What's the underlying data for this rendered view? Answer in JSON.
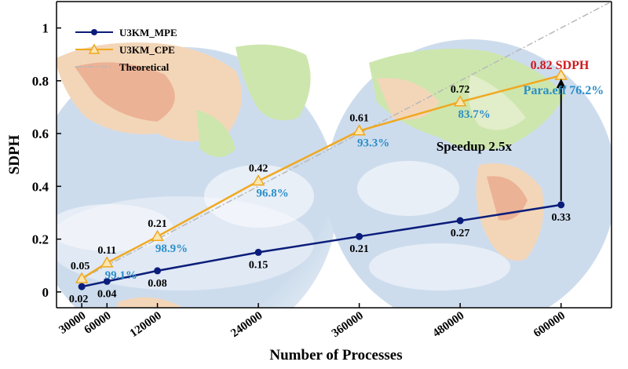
{
  "chart_data": {
    "type": "line",
    "xlabel": "Number of Processes",
    "ylabel": "SDPH",
    "x_ticks": [
      30000,
      60000,
      120000,
      240000,
      360000,
      480000,
      600000
    ],
    "y_ticks": [
      0,
      0.2,
      0.4,
      0.6,
      0.8,
      1
    ],
    "xlim": [
      0,
      660000
    ],
    "ylim": [
      -0.06,
      1.1
    ],
    "grid": false,
    "legend_position": "top-left",
    "series": [
      {
        "name": "U3KM_MPE",
        "color": "#0b1d7a",
        "marker": "circle",
        "x": [
          30000,
          60000,
          120000,
          240000,
          360000,
          480000,
          600000
        ],
        "y": [
          0.02,
          0.04,
          0.08,
          0.15,
          0.21,
          0.27,
          0.33
        ],
        "labels": [
          "0.02",
          "0.04",
          "0.08",
          "0.15",
          "0.21",
          "0.27",
          "0.33"
        ]
      },
      {
        "name": "U3KM_CPE",
        "color": "#f0a820",
        "marker": "triangle",
        "x": [
          30000,
          60000,
          120000,
          240000,
          360000,
          480000,
          600000
        ],
        "y": [
          0.05,
          0.11,
          0.21,
          0.42,
          0.61,
          0.72,
          0.82
        ],
        "labels": [
          "0.05",
          "0.11",
          "0.21",
          "0.42",
          "0.61",
          "0.72",
          ""
        ],
        "efficiency_labels": [
          "",
          "99.1%",
          "98.9%",
          "96.8%",
          "93.3%",
          "83.7%",
          ""
        ]
      },
      {
        "name": "Theoretical",
        "color": "#b8b8b8",
        "style": "dash-dot",
        "x": [
          30000,
          660000
        ],
        "y": [
          0.05,
          1.1
        ]
      }
    ],
    "annotations": {
      "peak": "0.82 SDPH",
      "efficiency": "Para.eff 76.2%",
      "speedup": "Speedup 2.5x"
    }
  },
  "colors": {
    "axis": "#000000",
    "peak_text": "#d0191e",
    "efficiency_text": "#2a8ec8",
    "ocean": "#b9cfe6",
    "land": "#b9dc8a",
    "desert": "#f0c59a",
    "storm": "#e3926a",
    "cloud": "#ffffff"
  }
}
